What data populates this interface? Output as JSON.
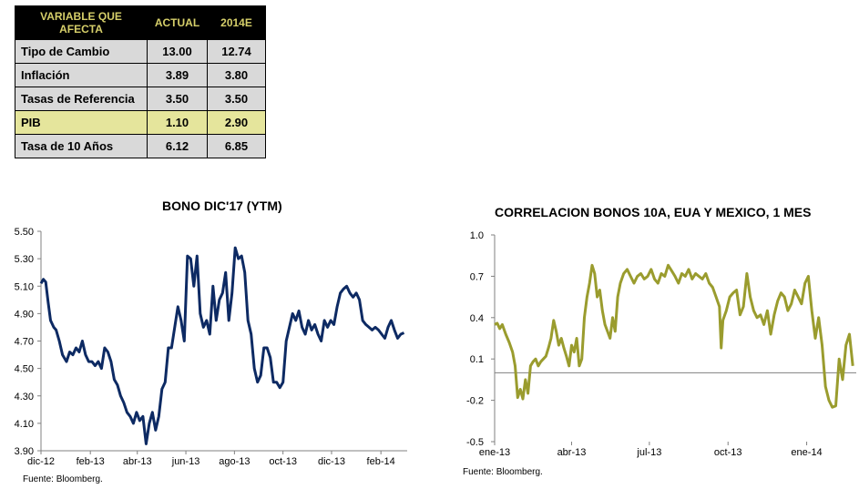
{
  "table": {
    "headers": [
      "VARIABLE QUE AFECTA",
      "ACTUAL",
      "2014E"
    ],
    "rows": [
      {
        "label": "Tipo de Cambio",
        "actual": "13.00",
        "estimate": "12.74"
      },
      {
        "label": "Inflación",
        "actual": "3.89",
        "estimate": "3.80"
      },
      {
        "label": "Tasas de Referencia",
        "actual": "3.50",
        "estimate": "3.50"
      },
      {
        "label": "PIB",
        "actual": "1.10",
        "estimate": "2.90"
      },
      {
        "label": "Tasa de 10 Años",
        "actual": "6.12",
        "estimate": "6.85"
      }
    ],
    "highlight_row_color": "#e5e59c",
    "row_color": "#d9d9d9",
    "header_bg": "#000000",
    "header_text_color": "#d6cf6a"
  },
  "chart_data": [
    {
      "type": "line",
      "title": "BONO DIC'17 (YTM)",
      "source": "Fuente: Bloomberg.",
      "color": "#0d2a63",
      "xlabel": "",
      "ylabel": "",
      "ylim": [
        3.9,
        5.5
      ],
      "yticks": [
        "5.50",
        "5.30",
        "5.10",
        "4.90",
        "4.70",
        "4.50",
        "4.30",
        "4.10",
        "3.90"
      ],
      "xtick_labels": [
        "dic-12",
        "feb-13",
        "abr-13",
        "jun-13",
        "ago-13",
        "oct-13",
        "dic-13",
        "feb-14"
      ],
      "grid": false,
      "series": [
        {
          "x": [
            "2012-12-01",
            "2012-12-04",
            "2012-12-07",
            "2012-12-10",
            "2012-12-13",
            "2012-12-17",
            "2012-12-20",
            "2012-12-24",
            "2012-12-28",
            "2013-01-02",
            "2013-01-06",
            "2013-01-10",
            "2013-01-14",
            "2013-01-18",
            "2013-01-22",
            "2013-01-26",
            "2013-01-30",
            "2013-02-03",
            "2013-02-07",
            "2013-02-11",
            "2013-02-15",
            "2013-02-19",
            "2013-02-23",
            "2013-02-27",
            "2013-03-03",
            "2013-03-07",
            "2013-03-11",
            "2013-03-15",
            "2013-03-19",
            "2013-03-23",
            "2013-03-27",
            "2013-03-31",
            "2013-04-04",
            "2013-04-08",
            "2013-04-12",
            "2013-04-16",
            "2013-04-20",
            "2013-04-24",
            "2013-04-28",
            "2013-05-02",
            "2013-05-06",
            "2013-05-10",
            "2013-05-14",
            "2013-05-18",
            "2013-05-22",
            "2013-05-26",
            "2013-05-30",
            "2013-06-03",
            "2013-06-07",
            "2013-06-11",
            "2013-06-15",
            "2013-06-19",
            "2013-06-23",
            "2013-06-27",
            "2013-07-01",
            "2013-07-05",
            "2013-07-09",
            "2013-07-13",
            "2013-07-17",
            "2013-07-21",
            "2013-07-25",
            "2013-07-29",
            "2013-08-02",
            "2013-08-06",
            "2013-08-10",
            "2013-08-14",
            "2013-08-18",
            "2013-08-22",
            "2013-08-26",
            "2013-08-30",
            "2013-09-03",
            "2013-09-07",
            "2013-09-11",
            "2013-09-15",
            "2013-09-19",
            "2013-09-23",
            "2013-09-27",
            "2013-10-01",
            "2013-10-05",
            "2013-10-09",
            "2013-10-13",
            "2013-10-17",
            "2013-10-21",
            "2013-10-25",
            "2013-10-29",
            "2013-11-02",
            "2013-11-06",
            "2013-11-10",
            "2013-11-14",
            "2013-11-18",
            "2013-11-22",
            "2013-11-26",
            "2013-11-30",
            "2013-12-04",
            "2013-12-08",
            "2013-12-12",
            "2013-12-16",
            "2013-12-20",
            "2013-12-24",
            "2013-12-28",
            "2014-01-01",
            "2014-01-05",
            "2014-01-09",
            "2014-01-13",
            "2014-01-17",
            "2014-01-21",
            "2014-01-25",
            "2014-01-29",
            "2014-02-02",
            "2014-02-06",
            "2014-02-10",
            "2014-02-14",
            "2014-02-18",
            "2014-02-22",
            "2014-02-26",
            "2014-03-02"
          ],
          "values": [
            5.12,
            5.15,
            5.13,
            4.98,
            4.85,
            4.8,
            4.78,
            4.7,
            4.6,
            4.55,
            4.62,
            4.6,
            4.65,
            4.62,
            4.7,
            4.6,
            4.55,
            4.55,
            4.52,
            4.55,
            4.5,
            4.65,
            4.62,
            4.55,
            4.42,
            4.38,
            4.3,
            4.25,
            4.18,
            4.15,
            4.1,
            4.18,
            4.12,
            4.15,
            3.95,
            4.1,
            4.18,
            4.05,
            4.15,
            4.35,
            4.4,
            4.65,
            4.65,
            4.8,
            4.95,
            4.85,
            4.7,
            5.32,
            5.3,
            5.1,
            5.32,
            4.9,
            4.8,
            4.85,
            4.75,
            5.1,
            4.85,
            5.0,
            5.05,
            5.2,
            4.85,
            5.05,
            5.38,
            5.3,
            5.32,
            5.2,
            4.85,
            4.75,
            4.5,
            4.4,
            4.45,
            4.65,
            4.65,
            4.58,
            4.4,
            4.4,
            4.36,
            4.4,
            4.7,
            4.8,
            4.9,
            4.85,
            4.92,
            4.8,
            4.75,
            4.85,
            4.78,
            4.82,
            4.75,
            4.7,
            4.85,
            4.8,
            4.85,
            4.82,
            4.95,
            5.05,
            5.08,
            5.1,
            5.05,
            5.02,
            5.05,
            5.0,
            4.85,
            4.82,
            4.8,
            4.78,
            4.8,
            4.78,
            4.75,
            4.72,
            4.8,
            4.85,
            4.78,
            4.72,
            4.75,
            4.76
          ]
        }
      ]
    },
    {
      "type": "line",
      "title": "CORRELACION BONOS 10A, EUA Y MEXICO, 1 MES",
      "source": "Fuente: Bloomberg.",
      "color": "#9a9c2e",
      "xlabel": "",
      "ylabel": "",
      "ylim": [
        -0.5,
        1.0
      ],
      "yticks": [
        "1.0",
        "0.7",
        "0.4",
        "0.1",
        "-0.2",
        "-0.5"
      ],
      "xtick_labels": [
        "ene-13",
        "abr-13",
        "jul-13",
        "oct-13",
        "ene-14"
      ],
      "baseline": 0,
      "grid": false,
      "series": [
        {
          "x": [
            "2013-01-01",
            "2013-01-04",
            "2013-01-07",
            "2013-01-10",
            "2013-01-14",
            "2013-01-18",
            "2013-01-22",
            "2013-01-25",
            "2013-01-28",
            "2013-01-31",
            "2013-02-03",
            "2013-02-06",
            "2013-02-09",
            "2013-02-12",
            "2013-02-15",
            "2013-02-18",
            "2013-02-21",
            "2013-02-24",
            "2013-02-27",
            "2013-03-02",
            "2013-03-05",
            "2013-03-08",
            "2013-03-11",
            "2013-03-14",
            "2013-03-17",
            "2013-03-20",
            "2013-03-23",
            "2013-03-26",
            "2013-03-29",
            "2013-04-01",
            "2013-04-04",
            "2013-04-07",
            "2013-04-10",
            "2013-04-13",
            "2013-04-16",
            "2013-04-19",
            "2013-04-22",
            "2013-04-25",
            "2013-04-28",
            "2013-05-01",
            "2013-05-04",
            "2013-05-07",
            "2013-05-10",
            "2013-05-13",
            "2013-05-16",
            "2013-05-19",
            "2013-05-22",
            "2013-05-25",
            "2013-05-28",
            "2013-06-01",
            "2013-06-05",
            "2013-06-09",
            "2013-06-13",
            "2013-06-17",
            "2013-06-21",
            "2013-06-25",
            "2013-06-29",
            "2013-07-03",
            "2013-07-07",
            "2013-07-11",
            "2013-07-15",
            "2013-07-19",
            "2013-07-23",
            "2013-07-27",
            "2013-07-31",
            "2013-08-04",
            "2013-08-08",
            "2013-08-12",
            "2013-08-16",
            "2013-08-20",
            "2013-08-24",
            "2013-08-28",
            "2013-09-01",
            "2013-09-05",
            "2013-09-09",
            "2013-09-13",
            "2013-09-17",
            "2013-09-21",
            "2013-09-23",
            "2013-09-25",
            "2013-09-29",
            "2013-10-03",
            "2013-10-07",
            "2013-10-11",
            "2013-10-15",
            "2013-10-19",
            "2013-10-23",
            "2013-10-27",
            "2013-10-31",
            "2013-11-04",
            "2013-11-08",
            "2013-11-12",
            "2013-11-16",
            "2013-11-20",
            "2013-11-24",
            "2013-11-28",
            "2013-12-02",
            "2013-12-06",
            "2013-12-10",
            "2013-12-14",
            "2013-12-18",
            "2013-12-22",
            "2013-12-26",
            "2013-12-30",
            "2014-01-03",
            "2014-01-07",
            "2014-01-11",
            "2014-01-15",
            "2014-01-19",
            "2014-01-23",
            "2014-01-27",
            "2014-01-31",
            "2014-02-04",
            "2014-02-08",
            "2014-02-12",
            "2014-02-16",
            "2014-02-20",
            "2014-02-24"
          ],
          "values": [
            0.35,
            0.36,
            0.32,
            0.35,
            0.28,
            0.22,
            0.15,
            0.05,
            -0.18,
            -0.12,
            -0.19,
            -0.05,
            -0.15,
            0.05,
            0.08,
            0.1,
            0.05,
            0.08,
            0.1,
            0.12,
            0.18,
            0.25,
            0.38,
            0.3,
            0.2,
            0.25,
            0.18,
            0.12,
            0.05,
            0.2,
            0.15,
            0.25,
            0.05,
            0.1,
            0.4,
            0.55,
            0.65,
            0.78,
            0.72,
            0.55,
            0.6,
            0.45,
            0.35,
            0.3,
            0.25,
            0.4,
            0.3,
            0.55,
            0.65,
            0.72,
            0.75,
            0.7,
            0.65,
            0.7,
            0.72,
            0.68,
            0.7,
            0.75,
            0.68,
            0.65,
            0.72,
            0.7,
            0.78,
            0.74,
            0.7,
            0.65,
            0.72,
            0.7,
            0.75,
            0.68,
            0.72,
            0.7,
            0.68,
            0.72,
            0.65,
            0.62,
            0.55,
            0.48,
            0.18,
            0.38,
            0.45,
            0.55,
            0.58,
            0.6,
            0.42,
            0.48,
            0.72,
            0.55,
            0.45,
            0.4,
            0.42,
            0.35,
            0.45,
            0.28,
            0.42,
            0.52,
            0.58,
            0.55,
            0.45,
            0.5,
            0.6,
            0.55,
            0.5,
            0.65,
            0.7,
            0.45,
            0.25,
            0.4,
            0.2,
            -0.1,
            -0.2,
            -0.25,
            -0.24,
            0.1,
            -0.05,
            0.2,
            0.28,
            0.05
          ]
        }
      ]
    }
  ]
}
